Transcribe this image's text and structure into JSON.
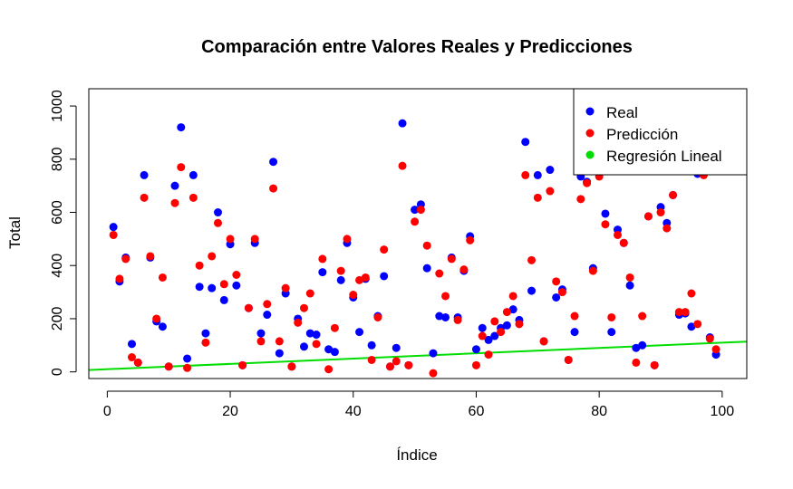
{
  "chart_data": {
    "type": "scatter",
    "title": "Comparación entre Valores Reales y Predicciones",
    "xlabel": "Índice",
    "ylabel": "Total",
    "xlim": [
      -3,
      104
    ],
    "ylim": [
      -25,
      1065
    ],
    "x_ticks": [
      0,
      20,
      40,
      60,
      80,
      100
    ],
    "x_tick_labels": [
      "0",
      "20",
      "40",
      "60",
      "80",
      "100"
    ],
    "y_ticks": [
      0,
      200,
      400,
      600,
      800,
      1000
    ],
    "y_tick_labels": [
      "0",
      "200",
      "400",
      "600",
      "800",
      "1000"
    ],
    "legend_position": "top-right",
    "series": [
      {
        "name": "Real",
        "color": "#0000ff",
        "x": [
          1,
          2,
          3,
          4,
          5,
          6,
          7,
          8,
          9,
          10,
          11,
          12,
          13,
          14,
          15,
          16,
          17,
          18,
          19,
          20,
          21,
          22,
          23,
          24,
          25,
          26,
          27,
          28,
          29,
          30,
          31,
          32,
          33,
          34,
          35,
          36,
          37,
          38,
          39,
          40,
          41,
          42,
          43,
          44,
          45,
          46,
          47,
          48,
          49,
          50,
          51,
          52,
          53,
          54,
          55,
          56,
          57,
          58,
          59,
          60,
          61,
          62,
          63,
          64,
          65,
          66,
          67,
          68,
          69,
          70,
          71,
          72,
          73,
          74,
          75,
          76,
          77,
          78,
          79,
          80,
          81,
          82,
          83,
          84,
          85,
          86,
          87,
          88,
          89,
          90,
          91,
          92,
          93,
          94,
          95,
          96,
          97,
          98,
          99
        ],
        "y": [
          545,
          340,
          430,
          105,
          35,
          740,
          430,
          190,
          170,
          20,
          700,
          920,
          50,
          740,
          320,
          145,
          315,
          600,
          270,
          480,
          325,
          25,
          240,
          485,
          145,
          215,
          790,
          70,
          295,
          20,
          200,
          95,
          145,
          140,
          375,
          85,
          75,
          345,
          485,
          280,
          150,
          350,
          100,
          210,
          360,
          20,
          90,
          935,
          25,
          610,
          630,
          390,
          70,
          210,
          205,
          430,
          205,
          380,
          510,
          85,
          165,
          120,
          135,
          165,
          175,
          235,
          195,
          865,
          305,
          740,
          115,
          760,
          280,
          310,
          45,
          150,
          735,
          715,
          390,
          760,
          595,
          150,
          535,
          485,
          325,
          90,
          100,
          585,
          25,
          620,
          560,
          665,
          215,
          220,
          170,
          745,
          745,
          130,
          65
        ]
      },
      {
        "name": "Predicción",
        "color": "#ff0000",
        "x": [
          1,
          2,
          3,
          4,
          5,
          6,
          7,
          8,
          9,
          10,
          11,
          12,
          13,
          14,
          15,
          16,
          17,
          18,
          19,
          20,
          21,
          22,
          23,
          24,
          25,
          26,
          27,
          28,
          29,
          30,
          31,
          32,
          33,
          34,
          35,
          36,
          37,
          38,
          39,
          40,
          41,
          42,
          43,
          44,
          45,
          46,
          47,
          48,
          49,
          50,
          51,
          52,
          53,
          54,
          55,
          56,
          57,
          58,
          59,
          60,
          61,
          62,
          63,
          64,
          65,
          66,
          67,
          68,
          69,
          70,
          71,
          72,
          73,
          74,
          75,
          76,
          77,
          78,
          79,
          80,
          81,
          82,
          83,
          84,
          85,
          86,
          87,
          88,
          89,
          90,
          91,
          92,
          93,
          94,
          95,
          96,
          97,
          98,
          99
        ],
        "y": [
          515,
          350,
          425,
          55,
          35,
          655,
          435,
          200,
          355,
          20,
          635,
          770,
          15,
          655,
          400,
          110,
          435,
          560,
          330,
          500,
          365,
          25,
          240,
          500,
          115,
          255,
          690,
          115,
          315,
          20,
          185,
          240,
          295,
          105,
          425,
          10,
          165,
          380,
          500,
          290,
          345,
          355,
          45,
          205,
          460,
          20,
          40,
          775,
          25,
          565,
          610,
          475,
          -5,
          370,
          285,
          425,
          195,
          385,
          495,
          25,
          135,
          65,
          190,
          150,
          225,
          285,
          180,
          740,
          420,
          655,
          115,
          680,
          340,
          300,
          45,
          210,
          650,
          710,
          380,
          735,
          555,
          205,
          515,
          485,
          355,
          35,
          210,
          585,
          25,
          600,
          540,
          665,
          225,
          225,
          295,
          180,
          740,
          125,
          85
        ]
      },
      {
        "name": "Regresión Lineal",
        "color": "#00dd00",
        "type": "line",
        "intercept": 10,
        "slope": 1.0,
        "x_range": [
          -3,
          104
        ]
      }
    ]
  }
}
